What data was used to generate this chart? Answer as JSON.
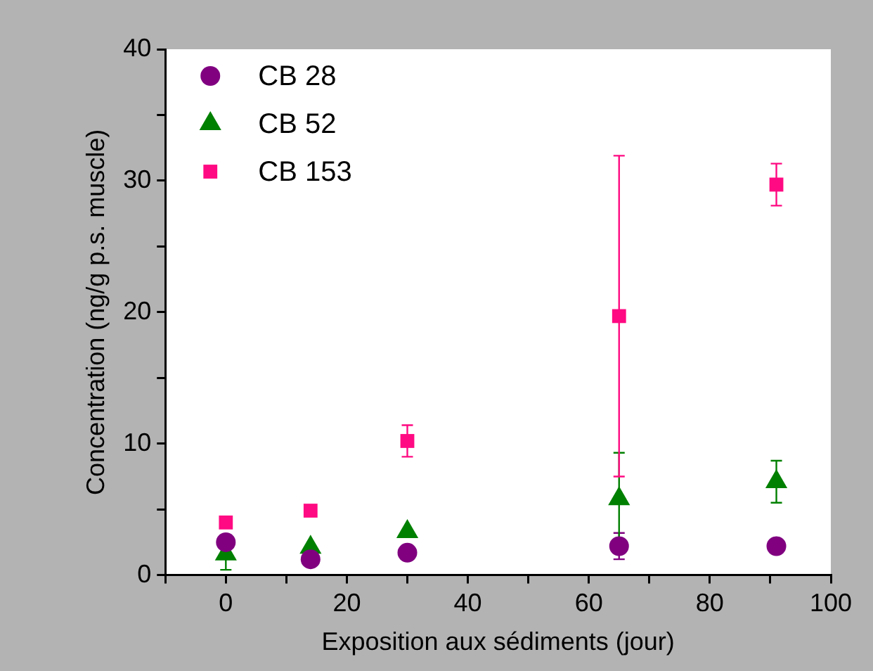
{
  "chart_data": {
    "type": "scatter",
    "xlabel": "Exposition aux sédiments (jour)",
    "ylabel": "Concentration (ng/g p.s. muscle)",
    "x": [
      0,
      14,
      30,
      65,
      91
    ],
    "xlim": [
      -10,
      100
    ],
    "xticks": [
      {
        "value": -10,
        "label": null
      },
      0,
      {
        "value": 10,
        "label": null
      },
      20,
      {
        "value": 30,
        "label": null
      },
      40,
      {
        "value": 50,
        "label": null
      },
      60,
      {
        "value": 70,
        "label": null
      },
      80,
      {
        "value": 90,
        "label": null
      },
      100
    ],
    "ylim": [
      0,
      40
    ],
    "yticks": [
      0,
      {
        "value": 5,
        "label": null
      },
      10,
      {
        "value": 15,
        "label": null
      },
      20,
      {
        "value": 25,
        "label": null
      },
      30,
      {
        "value": 35,
        "label": null
      },
      40
    ],
    "grid": false,
    "legend": "top left",
    "series": [
      {
        "name": "CB 28",
        "color": "#800080",
        "marker": "circle",
        "values": [
          2.5,
          1.2,
          1.7,
          2.2,
          2.2
        ],
        "errors": [
          null,
          null,
          null,
          1,
          null
        ]
      },
      {
        "name": "CB 52",
        "color": "#008000",
        "marker": "triangle",
        "values": [
          1.6,
          2.1,
          3.3,
          5.8,
          7.1
        ],
        "errors": [
          [
            0.4,
            1.6
          ],
          null,
          null,
          3.5,
          1.6
        ]
      },
      {
        "name": "CB 153",
        "color": "#ff0a82",
        "marker": "square",
        "values": [
          4.0,
          4.9,
          10.2,
          19.7,
          29.7
        ],
        "errors": [
          null,
          null,
          1.2,
          12.2,
          1.6
        ]
      }
    ]
  }
}
